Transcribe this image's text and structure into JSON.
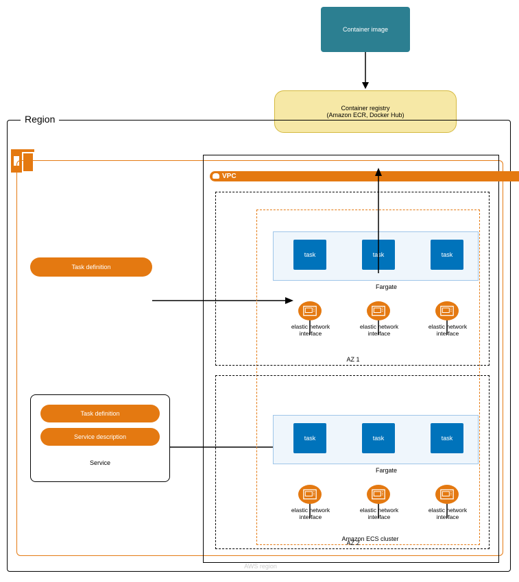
{
  "colors": {
    "accent": "#e47911",
    "task": "#0073bb",
    "image_box": "#2c7f91",
    "registry_fill": "#f6e8a6",
    "registry_border": "#d4b93f"
  },
  "region_label": "Region",
  "aws_region_label": "AWS region",
  "container_image": {
    "label": "Container image"
  },
  "container_registry": {
    "line1": "Container registry",
    "line2": "(Amazon ECR, Docker Hub)"
  },
  "vpc_label": "VPC",
  "task_definition": {
    "label": "Task definition"
  },
  "service": {
    "title": "Service",
    "task_definition": "Task definition",
    "service_description": "Service description"
  },
  "ecs_cluster_label": "Amazon ECS cluster",
  "az1": {
    "label": "AZ 1",
    "fargate_label": "Fargate",
    "tasks": [
      "task",
      "task",
      "task"
    ],
    "eni_label": "elastic network\ninterface"
  },
  "az2": {
    "label": "AZ 2",
    "fargate_label": "Fargate",
    "tasks": [
      "task",
      "task",
      "task"
    ],
    "eni_label": "elastic network\ninterface"
  }
}
